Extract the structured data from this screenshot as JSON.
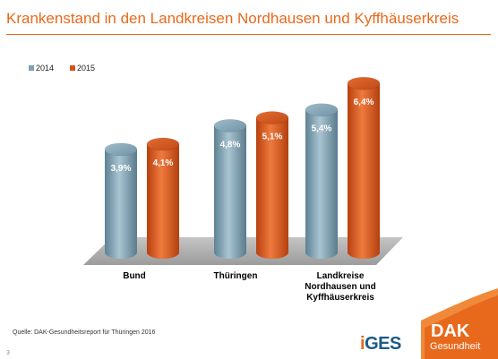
{
  "slide": {
    "title": "Krankenstand in den Landkreisen Nordhausen und Kyffhäuserkreis",
    "source": "Quelle: DAK-Gesundheitsreport für Thüringen 2016",
    "page_number": "3"
  },
  "logos": {
    "iges": {
      "i": "i",
      "ges": "GES"
    },
    "dak": {
      "name": "DAK",
      "sub": "Gesundheit"
    }
  },
  "colors": {
    "accent": "#e8691c",
    "series_2014": "#7fa2b4",
    "series_2015": "#d4541b"
  },
  "chart_data": {
    "type": "bar",
    "style": "3d-cylinder",
    "categories": [
      [
        "Bund"
      ],
      [
        "Thüringen"
      ],
      [
        "Landkreise",
        "Nordhausen und",
        "Kyffhäuserkreis"
      ]
    ],
    "series": [
      {
        "name": "2014",
        "values": [
          3.9,
          4.8,
          5.4
        ],
        "labels": [
          "3,9%",
          "4,8%",
          "5,4%"
        ]
      },
      {
        "name": "2015",
        "values": [
          4.1,
          5.1,
          6.4
        ],
        "labels": [
          "4,1%",
          "5,1%",
          "6,4%"
        ]
      }
    ],
    "legend_position": "top-left",
    "grid": false,
    "ylim": [
      0,
      7.0
    ]
  }
}
